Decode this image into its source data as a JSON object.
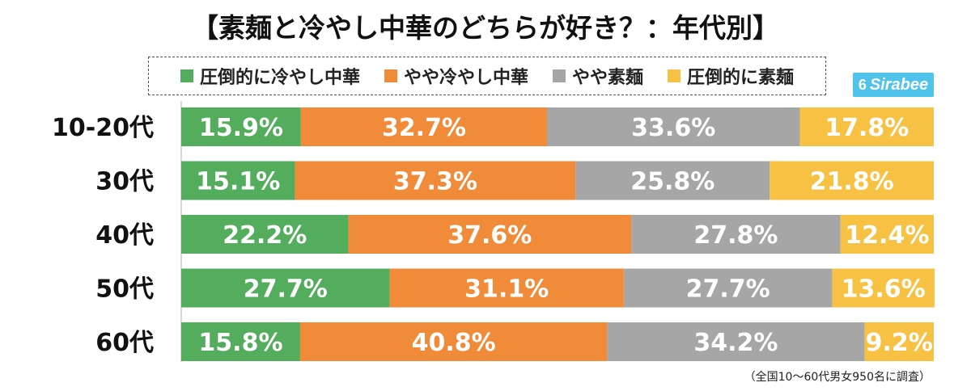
{
  "chart_data": {
    "type": "bar",
    "orientation": "horizontal",
    "stacked": true,
    "title": "【素麺と冷やし中華のどちらが好き？：年代別】",
    "categories": [
      "10-20代",
      "30代",
      "40代",
      "50代",
      "60代"
    ],
    "series": [
      {
        "name": "圧倒的に冷やし中華",
        "color": "#53ad5c",
        "values": [
          15.9,
          15.1,
          22.2,
          27.7,
          15.8
        ]
      },
      {
        "name": "やや冷やし中華",
        "color": "#f08c39",
        "values": [
          32.7,
          37.3,
          37.6,
          31.1,
          40.8
        ]
      },
      {
        "name": "やや素麺",
        "color": "#a6a6a6",
        "values": [
          33.6,
          25.8,
          27.8,
          27.7,
          34.2
        ]
      },
      {
        "name": "圧倒的に素麺",
        "color": "#f7c244",
        "values": [
          17.8,
          21.8,
          12.4,
          13.6,
          9.2
        ]
      }
    ],
    "value_suffix": "%",
    "xlim": [
      0,
      100
    ],
    "legend_position": "top",
    "note": "（全国10〜60代男女950名に調査）"
  },
  "brand": {
    "name": "Sirabee",
    "icon": "6"
  }
}
